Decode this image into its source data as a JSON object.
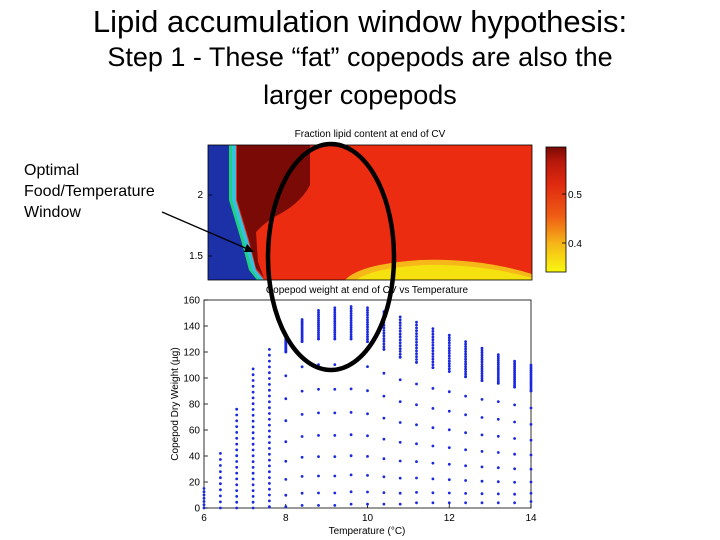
{
  "slide": {
    "title_line1": "Lipid accumulation window hypothesis:",
    "title_line2": "Step 1 - These “fat” copepods are also the",
    "title_line3": "larger copepods"
  },
  "annotation": {
    "lines": [
      "Optimal",
      "Food/Temperature",
      "Window"
    ]
  },
  "colors": {
    "deep_red": "#7a0a05",
    "red": "#ec2c10",
    "yellow": "#f5e010",
    "blue_marker": "#1a28e0",
    "dark_blue": "#1c30a8"
  },
  "chart_data": [
    {
      "type": "heatmap",
      "title": "Fraction lipid content at end of CV",
      "yticks": [
        "1.5",
        "2"
      ],
      "colorbar_ticks": [
        "0.4",
        "0.5"
      ],
      "regions": [
        "low-lipid band (blue/green) at low temperature",
        "maximum lipid (deep red)",
        "high lipid (red)",
        "lower lipid (yellow) at high temperature, low food"
      ]
    },
    {
      "type": "scatter",
      "title": "Copepod weight at end of CV vs Temperature",
      "xlabel": "Temperature (°C)",
      "ylabel": "Copepod Dry Weight (µg)",
      "xlim": [
        6,
        14
      ],
      "ylim": [
        0,
        160
      ],
      "xticks": [
        6,
        8,
        10,
        12,
        14
      ],
      "yticks": [
        0,
        20,
        40,
        60,
        80,
        100,
        120,
        140,
        160
      ],
      "x": [
        6,
        6.4,
        6.8,
        7.2,
        7.6,
        8,
        8.4,
        8.8,
        9.2,
        9.6,
        10,
        10.4,
        10.8,
        11.2,
        11.6,
        12,
        12.4,
        12.8,
        13.2,
        13.6,
        14
      ],
      "max_weight": [
        15,
        42,
        76,
        107,
        122,
        130,
        145,
        152,
        154,
        155,
        154,
        151,
        147,
        143,
        138,
        133,
        128,
        123,
        118,
        113,
        110
      ],
      "min_weight": [
        0,
        0,
        0,
        0,
        1,
        1,
        2,
        2,
        2,
        3,
        3,
        3,
        3,
        4,
        4,
        4,
        4,
        4,
        4,
        4,
        5
      ],
      "cluster_top": [
        0,
        0,
        0,
        0,
        0,
        120,
        128,
        130,
        130,
        130,
        128,
        122,
        116,
        112,
        108,
        105,
        101,
        98,
        96,
        93,
        90
      ]
    }
  ]
}
